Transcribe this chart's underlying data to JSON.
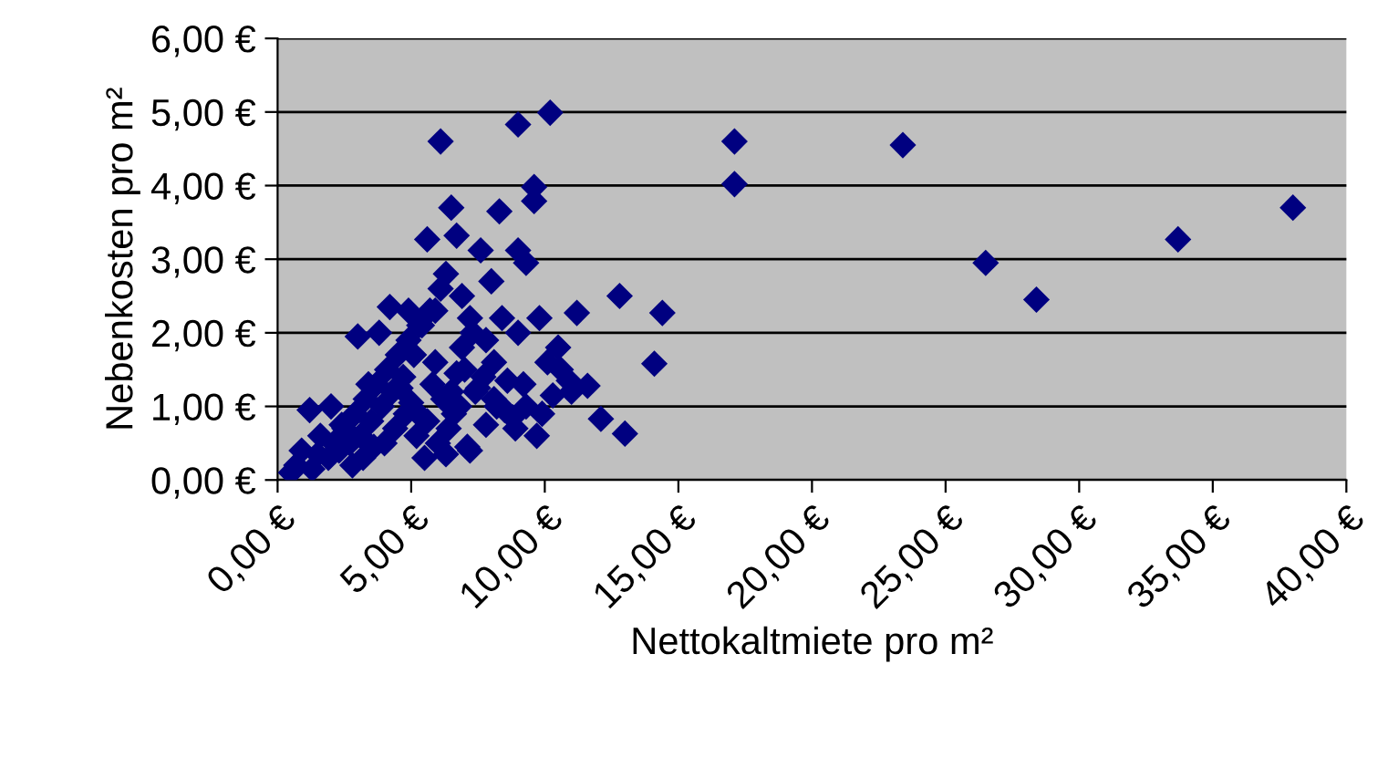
{
  "chart_data": {
    "type": "scatter",
    "xlabel": "Nettokaltmiete pro m²",
    "ylabel": "Nebenkosten pro m²",
    "marker": "diamond",
    "grid": "y",
    "legend": false,
    "xlim": [
      0,
      40
    ],
    "ylim": [
      0,
      6
    ],
    "xticks": [
      {
        "value": 0,
        "label": "0,00 €"
      },
      {
        "value": 5,
        "label": "5,00 €"
      },
      {
        "value": 10,
        "label": "10,00 €"
      },
      {
        "value": 15,
        "label": "15,00 €"
      },
      {
        "value": 20,
        "label": "20,00 €"
      },
      {
        "value": 25,
        "label": "25,00 €"
      },
      {
        "value": 30,
        "label": "30,00 €"
      },
      {
        "value": 35,
        "label": "35,00 €"
      },
      {
        "value": 40,
        "label": "40,00 €"
      }
    ],
    "yticks": [
      {
        "value": 0,
        "label": "0,00 €"
      },
      {
        "value": 1,
        "label": "1,00 €"
      },
      {
        "value": 2,
        "label": "2,00 €"
      },
      {
        "value": 3,
        "label": "3,00 €"
      },
      {
        "value": 4,
        "label": "4,00 €"
      },
      {
        "value": 5,
        "label": "5,00 €"
      },
      {
        "value": 6,
        "label": "6,00 €"
      }
    ],
    "series": [
      {
        "color": "#000080",
        "x": [
          6.1,
          9.0,
          10.2,
          17.1,
          17.1,
          23.4,
          26.5,
          33.7,
          38.0,
          6.5,
          5.6,
          6.7,
          8.3,
          9.6,
          9.6,
          9.0,
          7.6,
          9.3,
          28.4,
          12.8,
          14.4,
          14.1,
          11.2,
          11.6,
          12.1,
          13.0,
          10.6,
          10.9,
          10.3,
          9.9,
          9.2,
          8.8,
          8.1,
          7.8,
          7.2,
          6.9,
          6.3,
          5.9,
          5.4,
          5.1,
          4.7,
          4.3,
          3.9,
          3.5,
          3.1,
          2.7,
          2.3,
          1.9,
          1.5,
          0.7,
          0.5,
          0.9,
          1.3,
          2.1,
          2.5,
          2.9,
          3.3,
          3.7,
          4.1,
          4.5,
          4.9,
          5.3,
          5.7,
          6.1,
          6.5,
          6.9,
          7.3,
          7.7,
          8.1,
          8.5,
          8.9,
          9.3,
          9.7,
          10.1,
          4.0,
          4.4,
          4.8,
          5.2,
          5.6,
          6.0,
          6.4,
          6.8,
          7.2,
          3.6,
          3.2,
          2.8,
          4.6,
          5.0,
          5.4,
          5.8,
          6.2,
          6.6,
          7.0,
          7.4,
          7.8,
          8.2,
          8.6,
          9.0,
          5.5,
          6.3,
          7.1,
          4.2,
          3.8,
          3.0,
          2.0,
          1.6,
          1.2,
          2.4,
          8.4,
          9.8,
          10.5,
          11.0,
          3.4,
          4.9,
          5.9,
          6.7,
          7.5,
          8.0
        ],
        "values": [
          4.6,
          4.83,
          4.99,
          4.6,
          4.02,
          4.55,
          2.95,
          3.27,
          3.7,
          3.7,
          3.27,
          3.32,
          3.65,
          3.98,
          3.79,
          3.12,
          3.12,
          2.95,
          2.45,
          2.5,
          2.27,
          1.58,
          2.27,
          1.28,
          0.83,
          0.63,
          1.5,
          1.35,
          1.15,
          0.9,
          1.3,
          0.85,
          1.6,
          1.9,
          2.2,
          2.5,
          2.8,
          2.3,
          2.1,
          1.7,
          1.4,
          1.2,
          1.0,
          0.8,
          0.6,
          0.5,
          0.4,
          0.3,
          0.35,
          0.2,
          0.1,
          0.4,
          0.15,
          0.5,
          0.7,
          0.9,
          1.1,
          1.3,
          1.5,
          1.7,
          1.9,
          2.1,
          2.3,
          2.6,
          1.2,
          1.8,
          2.0,
          1.4,
          1.1,
          0.95,
          0.7,
          1.0,
          0.6,
          1.6,
          0.5,
          0.7,
          0.9,
          0.6,
          0.8,
          0.5,
          0.7,
          1.0,
          0.4,
          0.45,
          0.3,
          0.2,
          1.25,
          1.05,
          0.85,
          1.3,
          1.1,
          0.9,
          1.5,
          1.2,
          0.75,
          1.0,
          1.35,
          2.0,
          0.3,
          0.35,
          0.45,
          2.35,
          2.0,
          1.95,
          1.0,
          0.6,
          0.95,
          0.75,
          2.2,
          2.2,
          1.8,
          1.2,
          1.3,
          2.3,
          1.6,
          1.45,
          1.25,
          2.7
        ]
      }
    ]
  }
}
